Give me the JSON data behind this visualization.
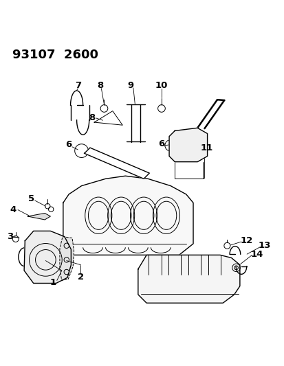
{
  "title": "93107  2600",
  "bg_color": "#ffffff",
  "line_color": "#000000",
  "label_fontsize": 9.5,
  "title_fontsize": 13
}
